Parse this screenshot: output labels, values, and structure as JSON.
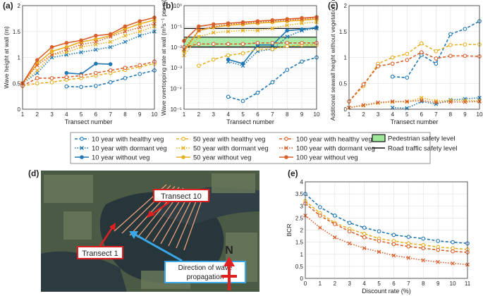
{
  "colors": {
    "blue": "#1f77b4",
    "yellow": "#e8b020",
    "orange": "#d95f2b",
    "green": "#9ee89a",
    "black": "#111111",
    "map_bg": "#3c4a3a",
    "map_water": "#2a3a40",
    "red": "#e02020",
    "cyan": "#3aa8e8"
  },
  "chart_data": [
    {
      "panel": "(a)",
      "type": "line",
      "xlabel": "Transect number",
      "ylabel": "Wave height at wall (m)",
      "xlim": [
        1,
        10
      ],
      "ylim": [
        0,
        2
      ],
      "xticks": [
        "1",
        "2",
        "3",
        "4",
        "5",
        "6",
        "7",
        "8",
        "9",
        "10"
      ],
      "yticks": [
        "0",
        "0.5",
        "1",
        "1.5",
        "2"
      ],
      "series": [
        {
          "name": "10 year with healthy veg",
          "color": "blue",
          "style": "healthy",
          "x": [
            4,
            5,
            6,
            7,
            8,
            9,
            10
          ],
          "y": [
            0.44,
            0.43,
            0.45,
            0.52,
            0.6,
            0.68,
            0.75
          ]
        },
        {
          "name": "10 year with dormant veg",
          "color": "blue",
          "style": "dormant",
          "x": [
            1,
            2,
            3,
            4,
            5,
            6,
            7,
            8,
            9,
            10
          ],
          "y": [
            0.5,
            0.7,
            1.0,
            1.05,
            1.1,
            1.15,
            1.2,
            1.3,
            1.42,
            1.5
          ]
        },
        {
          "name": "10 year without veg",
          "color": "blue",
          "style": "without",
          "x": [
            4,
            5,
            6,
            7
          ],
          "y": [
            0.7,
            0.68,
            0.88,
            0.87
          ]
        },
        {
          "name": "50 year with healthy veg",
          "color": "yellow",
          "style": "healthy",
          "x": [
            1,
            2,
            3,
            4,
            5,
            6,
            7,
            8,
            9,
            10
          ],
          "y": [
            0.45,
            0.5,
            0.52,
            0.57,
            0.6,
            0.65,
            0.7,
            0.76,
            0.82,
            0.88
          ]
        },
        {
          "name": "50 year with dormant veg",
          "color": "yellow",
          "style": "dormant",
          "x": [
            1,
            2,
            3,
            4,
            5,
            6,
            7,
            8,
            9,
            10
          ],
          "y": [
            0.5,
            0.75,
            1.05,
            1.1,
            1.2,
            1.25,
            1.3,
            1.42,
            1.5,
            1.6
          ]
        },
        {
          "name": "50 year without veg",
          "color": "yellow",
          "style": "without",
          "x": [
            1,
            2,
            3,
            4,
            5,
            6,
            7,
            8,
            9,
            10
          ],
          "y": [
            0.5,
            0.88,
            1.12,
            1.2,
            1.3,
            1.35,
            1.42,
            1.55,
            1.65,
            1.72
          ]
        },
        {
          "name": "100 year with healthy veg",
          "color": "orange",
          "style": "healthy",
          "x": [
            1,
            2,
            3,
            4,
            5,
            6,
            7,
            8,
            9,
            10
          ],
          "y": [
            0.45,
            0.6,
            0.6,
            0.62,
            0.65,
            0.7,
            0.75,
            0.8,
            0.85,
            0.92
          ]
        },
        {
          "name": "100 year with dormant veg",
          "color": "orange",
          "style": "dormant",
          "x": [
            1,
            2,
            3,
            4,
            5,
            6,
            7,
            8,
            9,
            10
          ],
          "y": [
            0.5,
            0.85,
            1.05,
            1.15,
            1.25,
            1.3,
            1.4,
            1.5,
            1.58,
            1.65
          ]
        },
        {
          "name": "100 year without veg",
          "color": "orange",
          "style": "without",
          "x": [
            1,
            2,
            3,
            4,
            5,
            6,
            7,
            8,
            9,
            10
          ],
          "y": [
            0.5,
            0.95,
            1.2,
            1.28,
            1.33,
            1.42,
            1.45,
            1.6,
            1.7,
            1.77
          ]
        }
      ]
    },
    {
      "panel": "(b)",
      "type": "line",
      "yscale": "log",
      "xlabel": "Transect number",
      "ylabel": "Wave overtopping rate at wall (m³s⁻¹ per m)",
      "xlim": [
        1,
        10
      ],
      "ylim_exp": [
        -5,
        0
      ],
      "xticks": [
        "1",
        "2",
        "3",
        "4",
        "5",
        "6",
        "7",
        "8",
        "9",
        "10"
      ],
      "yticks": [
        "10⁻⁵",
        "10⁻⁴",
        "10⁻³",
        "10⁻²",
        "10⁻¹",
        "10⁰"
      ],
      "pedestrian_band_exp": [
        -2,
        -1.52
      ],
      "road_levels_exp": [
        -2,
        -1.1
      ],
      "series": [
        {
          "name": "10 year with healthy veg",
          "color": "blue",
          "style": "healthy",
          "x": [
            4,
            5,
            6,
            7,
            8,
            9,
            10
          ],
          "y_exp": [
            -4.4,
            -4.6,
            -4.2,
            -3.7,
            -3.1,
            -2.7,
            -2.5
          ]
        },
        {
          "name": "10 year with dormant veg",
          "color": "blue",
          "style": "dormant",
          "x": [
            4,
            5,
            6,
            7,
            8,
            9,
            10
          ],
          "y_exp": [
            -2.7,
            -2.9,
            -2.2,
            -2.1,
            -1.5,
            -1.2,
            -1.1
          ]
        },
        {
          "name": "10 year without veg",
          "color": "blue",
          "style": "without",
          "x": [
            4,
            5,
            6,
            7,
            8,
            9,
            10
          ],
          "y_exp": [
            -2.6,
            -2.8,
            -1.9,
            -1.9,
            -1.2,
            -1.15,
            -1.05
          ]
        },
        {
          "name": "50 year with healthy veg",
          "color": "yellow",
          "style": "healthy",
          "x": [
            2,
            3,
            4,
            5,
            6,
            7,
            8,
            9,
            10
          ],
          "y_exp": [
            -2.9,
            -2.6,
            -2.4,
            -2.3,
            -2.1,
            -2.1,
            -1.95,
            -1.9,
            -1.9
          ]
        },
        {
          "name": "50 year with dormant veg",
          "color": "yellow",
          "style": "dormant",
          "x": [
            1,
            2,
            3,
            4,
            5,
            6,
            7,
            8,
            9,
            10
          ],
          "y_exp": [
            -2.4,
            -1.5,
            -1.3,
            -1.25,
            -1.2,
            -1.2,
            -1.1,
            -0.95,
            -0.85,
            -0.8
          ]
        },
        {
          "name": "50 year without veg",
          "color": "yellow",
          "style": "without",
          "x": [
            1,
            2,
            3,
            4,
            5,
            6,
            7,
            8,
            9,
            10
          ],
          "y_exp": [
            -2.2,
            -1.2,
            -1.05,
            -0.95,
            -0.9,
            -0.85,
            -0.8,
            -0.75,
            -0.7,
            -0.65
          ]
        },
        {
          "name": "100 year with healthy veg",
          "color": "orange",
          "style": "healthy",
          "x": [
            1,
            2,
            3,
            4,
            5,
            6,
            7,
            8,
            9,
            10
          ],
          "y_exp": [
            -2.0,
            -1.85,
            -1.85,
            -1.85,
            -1.85,
            -1.8,
            -1.8,
            -1.8,
            -1.8,
            -1.8
          ]
        },
        {
          "name": "100 year with dormant veg",
          "color": "orange",
          "style": "dormant",
          "x": [
            1,
            2,
            3,
            4,
            5,
            6,
            7,
            8,
            9,
            10
          ],
          "y_exp": [
            -2.1,
            -1.2,
            -1.0,
            -0.9,
            -0.85,
            -0.8,
            -0.75,
            -0.7,
            -0.65,
            -0.6
          ]
        },
        {
          "name": "100 year without veg",
          "color": "orange",
          "style": "without",
          "x": [
            1,
            2,
            3,
            4,
            5,
            6,
            7,
            8,
            9,
            10
          ],
          "y_exp": [
            -1.7,
            -1.0,
            -0.9,
            -0.85,
            -0.8,
            -0.75,
            -0.7,
            -0.65,
            -0.6,
            -0.55
          ]
        }
      ]
    },
    {
      "panel": "(c)",
      "type": "line",
      "xlabel": "Transect number",
      "ylabel": "Additional seawall height without vegetation (m)",
      "xlim": [
        1,
        10
      ],
      "ylim": [
        0,
        2
      ],
      "xticks": [
        "1",
        "2",
        "3",
        "4",
        "5",
        "6",
        "7",
        "8",
        "9",
        "10"
      ],
      "yticks": [
        "0",
        "0.5",
        "1",
        "1.5",
        "2"
      ],
      "series": [
        {
          "name": "10 year with healthy veg",
          "color": "blue",
          "style": "healthy",
          "x": [
            4,
            5,
            6,
            7,
            8,
            9,
            10
          ],
          "y": [
            0.63,
            0.61,
            1.05,
            0.88,
            1.45,
            1.55,
            1.7
          ]
        },
        {
          "name": "10 year with dormant veg",
          "color": "blue",
          "style": "dormant",
          "x": [
            4,
            5,
            6,
            7,
            8,
            9,
            10
          ],
          "y": [
            0.03,
            0.02,
            0.15,
            0.1,
            0.18,
            0.2,
            0.22
          ]
        },
        {
          "name": "50 year with healthy veg",
          "color": "yellow",
          "style": "healthy",
          "x": [
            1,
            2,
            3,
            4,
            5,
            6,
            7,
            8,
            9,
            10
          ],
          "y": [
            0.15,
            0.45,
            0.88,
            1.0,
            1.07,
            1.27,
            1.12,
            1.24,
            1.25,
            1.25
          ]
        },
        {
          "name": "50 year with dormant veg",
          "color": "yellow",
          "style": "dormant",
          "x": [
            1,
            2,
            3,
            4,
            5,
            6,
            7,
            8,
            9,
            10
          ],
          "y": [
            0.03,
            0.07,
            0.12,
            0.14,
            0.14,
            0.22,
            0.16,
            0.17,
            0.17,
            0.16
          ]
        },
        {
          "name": "100 year with healthy veg",
          "color": "orange",
          "style": "healthy",
          "x": [
            1,
            2,
            3,
            4,
            5,
            6,
            7,
            8,
            9,
            10
          ],
          "y": [
            0.15,
            0.48,
            0.83,
            0.88,
            0.95,
            1.1,
            0.98,
            1.03,
            1.03,
            1.02
          ]
        },
        {
          "name": "100 year with dormant veg",
          "color": "orange",
          "style": "dormant",
          "x": [
            1,
            2,
            3,
            4,
            5,
            6,
            7,
            8,
            9,
            10
          ],
          "y": [
            0.03,
            0.08,
            0.13,
            0.15,
            0.15,
            0.17,
            0.13,
            0.14,
            0.14,
            0.15
          ]
        }
      ]
    },
    {
      "panel": "(e)",
      "type": "line",
      "xlabel": "Discount rate (%)",
      "ylabel": "BCR",
      "xlim": [
        0,
        11
      ],
      "ylim": [
        0,
        4
      ],
      "xticks": [
        "0",
        "1",
        "2",
        "3",
        "4",
        "5",
        "6",
        "7",
        "8",
        "9",
        "10",
        "11"
      ],
      "yticks": [
        "0",
        "0.5",
        "1",
        "1.5",
        "2",
        "2.5",
        "3",
        "3.5",
        "4"
      ],
      "series": [
        {
          "name": "10 year with healthy veg",
          "color": "blue",
          "style": "healthy",
          "x": [
            0,
            1,
            2,
            3,
            4,
            5,
            6,
            7,
            8,
            9,
            10,
            11
          ],
          "y": [
            3.5,
            2.95,
            2.6,
            2.3,
            2.1,
            1.95,
            1.8,
            1.72,
            1.65,
            1.55,
            1.5,
            1.45
          ]
        },
        {
          "name": "50 year with healthy veg",
          "color": "yellow",
          "style": "healthy",
          "x": [
            0,
            1,
            2,
            3,
            4,
            5,
            6,
            7,
            8,
            9,
            10,
            11
          ],
          "y": [
            3.2,
            2.7,
            2.3,
            2.05,
            1.85,
            1.65,
            1.55,
            1.45,
            1.38,
            1.3,
            1.25,
            1.2
          ]
        },
        {
          "name": "100 year with healthy veg",
          "color": "orange",
          "style": "healthy",
          "x": [
            0,
            1,
            2,
            3,
            4,
            5,
            6,
            7,
            8,
            9,
            10,
            11
          ],
          "y": [
            3.1,
            2.6,
            2.25,
            1.95,
            1.7,
            1.55,
            1.42,
            1.32,
            1.25,
            1.18,
            1.12,
            1.08
          ]
        },
        {
          "name": "100 year with dormant veg",
          "color": "orange",
          "style": "dormant",
          "x": [
            0,
            1,
            2,
            3,
            4,
            5,
            6,
            7,
            8,
            9,
            10,
            11
          ],
          "y": [
            2.6,
            2.1,
            1.7,
            1.45,
            1.25,
            1.1,
            0.95,
            0.85,
            0.75,
            0.68,
            0.62,
            0.57
          ]
        }
      ]
    }
  ],
  "legend": {
    "items": [
      {
        "label": "10 year with healthy veg",
        "color": "blue",
        "style": "healthy"
      },
      {
        "label": "10 year with dormant veg",
        "color": "blue",
        "style": "dormant"
      },
      {
        "label": "10 year without veg",
        "color": "blue",
        "style": "without"
      },
      {
        "label": "50 year with healthy veg",
        "color": "yellow",
        "style": "healthy"
      },
      {
        "label": "50 year with dormant veg",
        "color": "yellow",
        "style": "dormant"
      },
      {
        "label": "50 year without veg",
        "color": "yellow",
        "style": "without"
      },
      {
        "label": "100 year with healthy veg",
        "color": "orange",
        "style": "healthy"
      },
      {
        "label": "100 year with dormant veg",
        "color": "orange",
        "style": "dormant"
      },
      {
        "label": "100 year without veg",
        "color": "orange",
        "style": "without"
      }
    ],
    "pedestrian": "Pedestrian safety level",
    "road": "Road traffic safety level"
  },
  "map": {
    "panel": "(d)",
    "transect10": "Transect  10",
    "transect1": "Transect  1",
    "direction_line1": "Direction  of  wave",
    "direction_line2": "propagation",
    "north": "N"
  }
}
